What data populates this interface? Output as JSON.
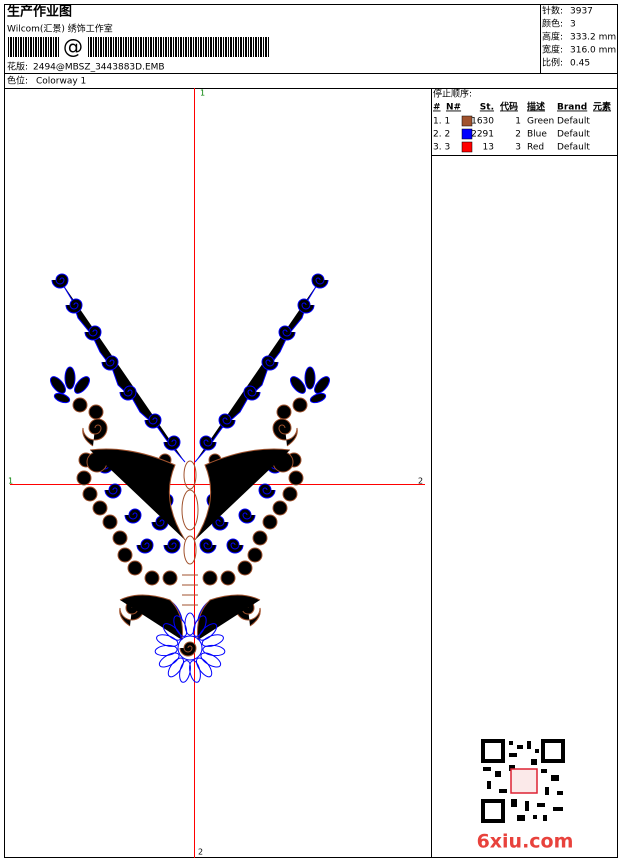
{
  "header": {
    "title": "生产作业图",
    "company": "Wilcom(汇景) 绣饰工作室",
    "barcode_text": "@",
    "design_label": "花版:",
    "design": "2494@MBSZ_3443883D.EMB",
    "colorway_label": "色位:",
    "colorway": "Colorway 1"
  },
  "stats": [
    {
      "label": "针数:",
      "value": "3937"
    },
    {
      "label": "颜色:",
      "value": "3"
    },
    {
      "label": "高度:",
      "value": "333.2 mm"
    },
    {
      "label": "宽度:",
      "value": "316.0 mm"
    },
    {
      "label": "比例:",
      "value": "0.45"
    }
  ],
  "stop_sequence": {
    "title": "停止顺序:",
    "columns": [
      "#",
      "N#",
      "St.",
      "代码",
      "描述",
      "Brand",
      "元素"
    ],
    "rows": [
      {
        "seq": "1. 1",
        "swatch": "#a0522d",
        "stitches": 1630,
        "code": 1,
        "desc": "Green",
        "brand": "Default"
      },
      {
        "seq": "2. 2",
        "swatch": "#0000ff",
        "stitches": 2291,
        "code": 2,
        "desc": "Blue",
        "brand": "Default"
      },
      {
        "seq": "3. 3",
        "swatch": "#ff0000",
        "stitches": 13,
        "code": 3,
        "desc": "Red",
        "brand": "Default"
      }
    ]
  },
  "axis_marks": {
    "top": "1",
    "bottom": "2",
    "left": "1",
    "right": "2"
  },
  "watermark": "6xiu.com"
}
